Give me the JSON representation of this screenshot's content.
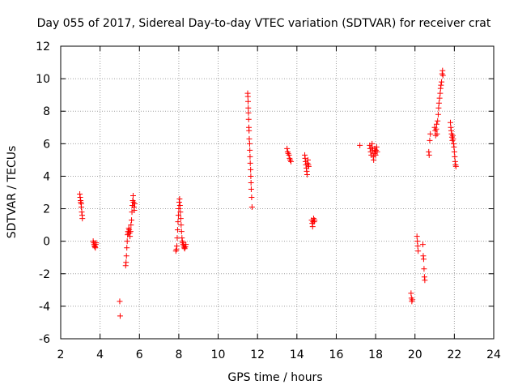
{
  "chart_data": {
    "type": "scatter",
    "title": "Day 055 of 2017, Sidereal Day-to-day VTEC variation (SDTVAR) for receiver crat",
    "xlabel": "GPS time / hours",
    "ylabel": "SDTVAR / TECUs",
    "xlim": [
      2,
      24
    ],
    "ylim": [
      -6,
      12
    ],
    "xticks": [
      2,
      4,
      6,
      8,
      10,
      12,
      14,
      16,
      18,
      20,
      22,
      24
    ],
    "yticks": [
      -6,
      -4,
      -2,
      0,
      2,
      4,
      6,
      8,
      10,
      12
    ],
    "grid": true,
    "marker": "+",
    "series": [
      {
        "name": "SDTVAR",
        "color": "#ff0000",
        "points": [
          [
            2.97,
            2.9
          ],
          [
            2.99,
            2.7
          ],
          [
            3.01,
            2.5
          ],
          [
            3.02,
            2.4
          ],
          [
            3.04,
            2.3
          ],
          [
            3.05,
            2.1
          ],
          [
            3.07,
            1.8
          ],
          [
            3.09,
            1.6
          ],
          [
            3.1,
            1.4
          ],
          [
            3.65,
            0.0
          ],
          [
            3.68,
            -0.1
          ],
          [
            3.7,
            -0.2
          ],
          [
            3.72,
            -0.3
          ],
          [
            3.74,
            -0.35
          ],
          [
            3.76,
            -0.4
          ],
          [
            3.78,
            -0.2
          ],
          [
            3.8,
            -0.1
          ],
          [
            5.0,
            -3.7
          ],
          [
            5.02,
            -4.6
          ],
          [
            5.3,
            -1.5
          ],
          [
            5.32,
            -1.3
          ],
          [
            5.34,
            -0.9
          ],
          [
            5.36,
            -0.4
          ],
          [
            5.38,
            0.0
          ],
          [
            5.4,
            0.4
          ],
          [
            5.42,
            0.6
          ],
          [
            5.44,
            0.5
          ],
          [
            5.46,
            0.8
          ],
          [
            5.48,
            0.7
          ],
          [
            5.5,
            0.5
          ],
          [
            5.52,
            0.3
          ],
          [
            5.55,
            0.6
          ],
          [
            5.57,
            1.0
          ],
          [
            5.6,
            1.3
          ],
          [
            5.62,
            1.8
          ],
          [
            5.64,
            2.2
          ],
          [
            5.66,
            2.5
          ],
          [
            5.68,
            2.8
          ],
          [
            5.7,
            2.4
          ],
          [
            5.72,
            2.1
          ],
          [
            5.74,
            1.9
          ],
          [
            5.76,
            2.3
          ],
          [
            7.85,
            -0.6
          ],
          [
            7.88,
            -0.5
          ],
          [
            7.9,
            -0.3
          ],
          [
            7.92,
            0.2
          ],
          [
            7.94,
            0.7
          ],
          [
            7.96,
            1.2
          ],
          [
            7.98,
            1.6
          ],
          [
            8.0,
            2.0
          ],
          [
            8.02,
            2.4
          ],
          [
            8.04,
            2.6
          ],
          [
            8.06,
            2.2
          ],
          [
            8.08,
            1.8
          ],
          [
            8.1,
            1.4
          ],
          [
            8.12,
            1.0
          ],
          [
            8.14,
            0.6
          ],
          [
            8.16,
            0.2
          ],
          [
            8.18,
            0.0
          ],
          [
            8.2,
            -0.1
          ],
          [
            8.22,
            -0.2
          ],
          [
            8.25,
            -0.3
          ],
          [
            8.28,
            -0.4
          ],
          [
            8.3,
            -0.45
          ],
          [
            8.33,
            -0.35
          ],
          [
            8.36,
            -0.2
          ],
          [
            11.5,
            9.1
          ],
          [
            11.51,
            8.9
          ],
          [
            11.52,
            8.6
          ],
          [
            11.53,
            8.2
          ],
          [
            11.54,
            7.9
          ],
          [
            11.55,
            7.5
          ],
          [
            11.56,
            7.0
          ],
          [
            11.57,
            6.8
          ],
          [
            11.58,
            6.3
          ],
          [
            11.6,
            6.0
          ],
          [
            11.61,
            5.6
          ],
          [
            11.62,
            5.2
          ],
          [
            11.63,
            4.8
          ],
          [
            11.65,
            4.4
          ],
          [
            11.66,
            4.0
          ],
          [
            11.67,
            3.6
          ],
          [
            11.68,
            3.2
          ],
          [
            11.7,
            2.7
          ],
          [
            11.72,
            2.1
          ],
          [
            13.5,
            5.7
          ],
          [
            13.53,
            5.5
          ],
          [
            13.56,
            5.4
          ],
          [
            13.6,
            5.3
          ],
          [
            13.63,
            5.1
          ],
          [
            13.66,
            5.0
          ],
          [
            13.7,
            4.9
          ],
          [
            14.4,
            5.3
          ],
          [
            14.42,
            5.1
          ],
          [
            14.44,
            4.9
          ],
          [
            14.46,
            4.7
          ],
          [
            14.48,
            4.5
          ],
          [
            14.5,
            4.3
          ],
          [
            14.52,
            4.1
          ],
          [
            14.54,
            4.8
          ],
          [
            14.56,
            5.0
          ],
          [
            14.58,
            4.7
          ],
          [
            14.6,
            4.6
          ],
          [
            14.75,
            1.3
          ],
          [
            14.78,
            1.1
          ],
          [
            14.8,
            0.9
          ],
          [
            14.82,
            1.2
          ],
          [
            14.85,
            1.4
          ],
          [
            14.88,
            1.2
          ],
          [
            14.9,
            1.3
          ],
          [
            17.2,
            5.9
          ],
          [
            17.7,
            5.9
          ],
          [
            17.72,
            5.7
          ],
          [
            17.75,
            5.5
          ],
          [
            17.78,
            5.3
          ],
          [
            17.8,
            5.8
          ],
          [
            17.82,
            6.0
          ],
          [
            17.85,
            5.6
          ],
          [
            17.88,
            5.2
          ],
          [
            17.9,
            5.0
          ],
          [
            17.92,
            5.4
          ],
          [
            17.95,
            5.7
          ],
          [
            17.98,
            5.5
          ],
          [
            18.0,
            5.3
          ],
          [
            18.02,
            5.6
          ],
          [
            18.05,
            5.8
          ],
          [
            18.08,
            5.5
          ],
          [
            19.8,
            -3.2
          ],
          [
            19.82,
            -3.5
          ],
          [
            19.84,
            -3.7
          ],
          [
            19.86,
            -3.6
          ],
          [
            20.1,
            0.3
          ],
          [
            20.12,
            0.0
          ],
          [
            20.14,
            -0.3
          ],
          [
            20.16,
            -0.6
          ],
          [
            20.4,
            -0.2
          ],
          [
            20.42,
            -0.9
          ],
          [
            20.44,
            -1.1
          ],
          [
            20.46,
            -1.7
          ],
          [
            20.48,
            -2.2
          ],
          [
            20.5,
            -2.4
          ],
          [
            20.7,
            5.5
          ],
          [
            20.72,
            5.3
          ],
          [
            20.75,
            6.2
          ],
          [
            20.78,
            6.6
          ],
          [
            21.0,
            7.0
          ],
          [
            21.03,
            6.8
          ],
          [
            21.05,
            6.5
          ],
          [
            21.08,
            6.9
          ],
          [
            21.1,
            7.2
          ],
          [
            21.12,
            6.6
          ],
          [
            21.15,
            7.4
          ],
          [
            21.18,
            7.8
          ],
          [
            21.2,
            8.2
          ],
          [
            21.22,
            8.5
          ],
          [
            21.25,
            8.8
          ],
          [
            21.28,
            9.1
          ],
          [
            21.3,
            9.4
          ],
          [
            21.32,
            9.6
          ],
          [
            21.35,
            9.8
          ],
          [
            21.38,
            10.3
          ],
          [
            21.4,
            10.5
          ],
          [
            21.42,
            10.2
          ],
          [
            21.8,
            7.3
          ],
          [
            21.82,
            7.0
          ],
          [
            21.84,
            6.8
          ],
          [
            21.86,
            6.6
          ],
          [
            21.88,
            6.4
          ],
          [
            21.9,
            6.2
          ],
          [
            21.92,
            6.5
          ],
          [
            21.94,
            6.3
          ],
          [
            21.96,
            6.0
          ],
          [
            21.98,
            5.8
          ],
          [
            22.0,
            5.5
          ],
          [
            22.02,
            5.2
          ],
          [
            22.04,
            4.9
          ],
          [
            22.06,
            4.7
          ],
          [
            22.08,
            4.6
          ]
        ]
      }
    ]
  }
}
